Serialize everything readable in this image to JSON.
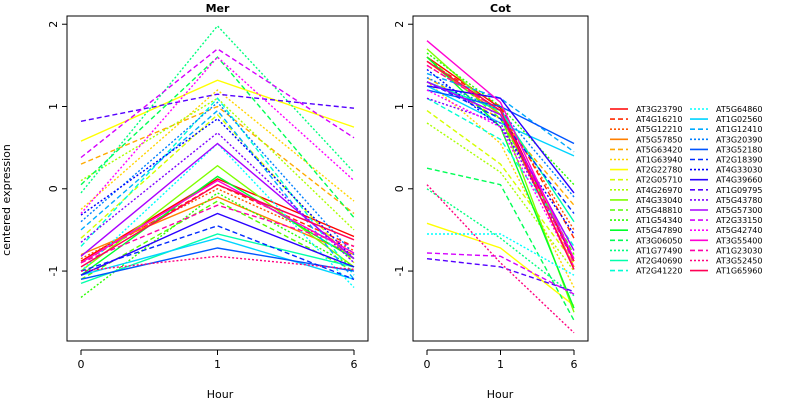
{
  "figure": {
    "ylabel": "centered expression",
    "xlabel": "Hour"
  },
  "chart_data": {
    "type": "line",
    "ylim": [
      -1.85,
      2.1
    ],
    "y_ticks": [
      -1,
      0,
      1,
      2
    ],
    "categories": [
      "0",
      "1",
      "6"
    ],
    "panels": [
      {
        "title": "Mer",
        "series": [
          {
            "name": "AT3G23790",
            "values": [
              -0.88,
              0.12,
              -0.58
            ]
          },
          {
            "name": "AT4G16210",
            "values": [
              -0.9,
              0.05,
              -0.7
            ]
          },
          {
            "name": "AT5G12210",
            "values": [
              -0.85,
              0.0,
              -0.75
            ]
          },
          {
            "name": "AT5G57850",
            "values": [
              -0.8,
              -0.1,
              -0.8
            ]
          },
          {
            "name": "AT5G63420",
            "values": [
              0.3,
              1.0,
              -0.3
            ]
          },
          {
            "name": "AT1G63940",
            "values": [
              -0.25,
              1.2,
              -0.15
            ]
          },
          {
            "name": "AT2G22780",
            "values": [
              0.58,
              1.32,
              0.75
            ]
          },
          {
            "name": "AT2G05710",
            "values": [
              -0.6,
              0.9,
              -0.9
            ]
          },
          {
            "name": "AT4G26970",
            "values": [
              0.1,
              1.1,
              -0.5
            ]
          },
          {
            "name": "AT4G33040",
            "values": [
              -1.0,
              0.28,
              -0.95
            ]
          },
          {
            "name": "AT5G48810",
            "values": [
              -1.1,
              -0.15,
              -1.0
            ]
          },
          {
            "name": "AT1G54340",
            "values": [
              -1.32,
              -0.05,
              -0.95
            ]
          },
          {
            "name": "AT5G47890",
            "values": [
              -1.05,
              0.15,
              -0.85
            ]
          },
          {
            "name": "AT3G06050",
            "values": [
              0.05,
              1.6,
              -0.35
            ]
          },
          {
            "name": "AT1G77490",
            "values": [
              -0.05,
              1.98,
              0.2
            ]
          },
          {
            "name": "AT2G40690",
            "values": [
              -1.15,
              -0.55,
              -0.95
            ]
          },
          {
            "name": "AT2G41220",
            "values": [
              -0.7,
              1.1,
              -1.05
            ]
          },
          {
            "name": "AT5G64860",
            "values": [
              -1.0,
              0.55,
              -1.2
            ]
          },
          {
            "name": "AT1G02560",
            "values": [
              -1.05,
              -0.6,
              -1.1
            ]
          },
          {
            "name": "AT1G12410",
            "values": [
              -0.5,
              0.95,
              -1.1
            ]
          },
          {
            "name": "AT3G20390",
            "values": [
              -0.4,
              1.05,
              -0.8
            ]
          },
          {
            "name": "AT3G52180",
            "values": [
              -1.1,
              -0.72,
              -1.0
            ]
          },
          {
            "name": "AT2G18390",
            "values": [
              -1.0,
              -0.45,
              -1.1
            ]
          },
          {
            "name": "AT4G33030",
            "values": [
              -0.32,
              0.85,
              -0.85
            ]
          },
          {
            "name": "AT4G39660",
            "values": [
              -1.05,
              -0.3,
              -0.95
            ]
          },
          {
            "name": "AT1G09795",
            "values": [
              0.82,
              1.15,
              0.98
            ]
          },
          {
            "name": "AT5G43780",
            "values": [
              -0.65,
              0.68,
              -0.9
            ]
          },
          {
            "name": "AT5G57300",
            "values": [
              -0.82,
              0.55,
              -0.85
            ]
          },
          {
            "name": "AT2G33150",
            "values": [
              0.38,
              1.7,
              0.62
            ]
          },
          {
            "name": "AT5G42740",
            "values": [
              -0.3,
              1.6,
              0.1
            ]
          },
          {
            "name": "AT3G55400",
            "values": [
              -0.9,
              0.1,
              -0.78
            ]
          },
          {
            "name": "AT1G23030",
            "values": [
              -0.9,
              -0.2,
              -0.7
            ]
          },
          {
            "name": "AT3G52450",
            "values": [
              -1.0,
              -0.82,
              -0.98
            ]
          },
          {
            "name": "AT1G65960",
            "values": [
              -0.95,
              0.05,
              -0.62
            ]
          }
        ]
      },
      {
        "title": "Cot",
        "series": [
          {
            "name": "AT3G23790",
            "values": [
              1.6,
              0.98,
              -0.88
            ]
          },
          {
            "name": "AT4G16210",
            "values": [
              1.55,
              1.0,
              -0.6
            ]
          },
          {
            "name": "AT5G12210",
            "values": [
              1.5,
              0.95,
              -0.5
            ]
          },
          {
            "name": "AT5G57850",
            "values": [
              1.55,
              0.9,
              -0.95
            ]
          },
          {
            "name": "AT5G63420",
            "values": [
              1.35,
              0.85,
              -0.2
            ]
          },
          {
            "name": "AT1G63940",
            "values": [
              1.3,
              0.55,
              -1.2
            ]
          },
          {
            "name": "AT2G22780",
            "values": [
              -0.42,
              -0.72,
              -1.42
            ]
          },
          {
            "name": "AT2G05710",
            "values": [
              0.95,
              0.3,
              -0.9
            ]
          },
          {
            "name": "AT4G26970",
            "values": [
              0.8,
              0.2,
              -1.0
            ]
          },
          {
            "name": "AT4G33040",
            "values": [
              1.7,
              0.9,
              -1.5
            ]
          },
          {
            "name": "AT5G48810",
            "values": [
              1.6,
              0.85,
              -0.8
            ]
          },
          {
            "name": "AT1G54340",
            "values": [
              1.65,
              1.0,
              0.05
            ]
          },
          {
            "name": "AT5G47890",
            "values": [
              1.6,
              0.75,
              -1.45
            ]
          },
          {
            "name": "AT3G06050",
            "values": [
              0.25,
              0.05,
              -1.6
            ]
          },
          {
            "name": "AT1G77490",
            "values": [
              0.0,
              -0.6,
              -1.3
            ]
          },
          {
            "name": "AT2G40690",
            "values": [
              1.3,
              0.95,
              -0.4
            ]
          },
          {
            "name": "AT2G41220",
            "values": [
              1.1,
              0.6,
              -0.7
            ]
          },
          {
            "name": "AT5G64860",
            "values": [
              -0.55,
              -0.55,
              -1.05
            ]
          },
          {
            "name": "AT1G02560",
            "values": [
              1.25,
              0.8,
              0.4
            ]
          },
          {
            "name": "AT1G12410",
            "values": [
              1.4,
              1.1,
              0.45
            ]
          },
          {
            "name": "AT3G20390",
            "values": [
              1.35,
              0.95,
              -0.1
            ]
          },
          {
            "name": "AT3G52180",
            "values": [
              1.2,
              1.0,
              0.55
            ]
          },
          {
            "name": "AT2G18390",
            "values": [
              1.3,
              0.85,
              -0.3
            ]
          },
          {
            "name": "AT4G33030",
            "values": [
              1.45,
              0.75,
              -0.55
            ]
          },
          {
            "name": "AT4G39660",
            "values": [
              1.25,
              1.1,
              -0.05
            ]
          },
          {
            "name": "AT1G09795",
            "values": [
              -0.85,
              -0.95,
              -1.25
            ]
          },
          {
            "name": "AT5G43780",
            "values": [
              1.1,
              0.8,
              -0.85
            ]
          },
          {
            "name": "AT5G57300",
            "values": [
              1.3,
              0.9,
              -0.75
            ]
          },
          {
            "name": "AT2G33150",
            "values": [
              -0.78,
              -0.82,
              -1.28
            ]
          },
          {
            "name": "AT5G42740",
            "values": [
              1.2,
              0.75,
              -0.95
            ]
          },
          {
            "name": "AT3G55400",
            "values": [
              1.8,
              1.05,
              -0.85
            ]
          },
          {
            "name": "AT1G23030",
            "values": [
              1.5,
              0.95,
              -0.9
            ]
          },
          {
            "name": "AT3G52450",
            "values": [
              0.05,
              -0.9,
              -1.75
            ]
          },
          {
            "name": "AT1G65960",
            "values": [
              1.55,
              0.95,
              -0.98
            ]
          }
        ]
      }
    ],
    "line_styles": [
      {
        "color": "#ff0000",
        "dash": "solid"
      },
      {
        "color": "#ff2a00",
        "dash": "dashed"
      },
      {
        "color": "#ff5500",
        "dash": "dotted"
      },
      {
        "color": "#ff7f00",
        "dash": "solid"
      },
      {
        "color": "#ffaa00",
        "dash": "dashed"
      },
      {
        "color": "#ffd400",
        "dash": "dotted"
      },
      {
        "color": "#ffff00",
        "dash": "solid"
      },
      {
        "color": "#d4ff00",
        "dash": "dashed"
      },
      {
        "color": "#aaff00",
        "dash": "dotted"
      },
      {
        "color": "#7fff00",
        "dash": "solid"
      },
      {
        "color": "#55ff00",
        "dash": "dashed"
      },
      {
        "color": "#2aff00",
        "dash": "dotted"
      },
      {
        "color": "#00ff2a",
        "dash": "solid"
      },
      {
        "color": "#00ff55",
        "dash": "dashed"
      },
      {
        "color": "#00ff7f",
        "dash": "dotted"
      },
      {
        "color": "#00ffaa",
        "dash": "solid"
      },
      {
        "color": "#00ffd4",
        "dash": "dashed"
      },
      {
        "color": "#00ffff",
        "dash": "dotted"
      },
      {
        "color": "#00d4ff",
        "dash": "solid"
      },
      {
        "color": "#00aaff",
        "dash": "dashed"
      },
      {
        "color": "#007fff",
        "dash": "dotted"
      },
      {
        "color": "#0055ff",
        "dash": "solid"
      },
      {
        "color": "#002aff",
        "dash": "dashed"
      },
      {
        "color": "#0000ff",
        "dash": "dotted"
      },
      {
        "color": "#2a00ff",
        "dash": "solid"
      },
      {
        "color": "#5500ff",
        "dash": "dashed"
      },
      {
        "color": "#7f00ff",
        "dash": "dotted"
      },
      {
        "color": "#aa00ff",
        "dash": "solid"
      },
      {
        "color": "#d400ff",
        "dash": "dashed"
      },
      {
        "color": "#ff00ff",
        "dash": "dotted"
      },
      {
        "color": "#ff00d4",
        "dash": "solid"
      },
      {
        "color": "#ff00aa",
        "dash": "dashed"
      },
      {
        "color": "#ff007f",
        "dash": "dotted"
      },
      {
        "color": "#ff0055",
        "dash": "solid"
      }
    ],
    "legend_position": "right",
    "grid": false
  }
}
